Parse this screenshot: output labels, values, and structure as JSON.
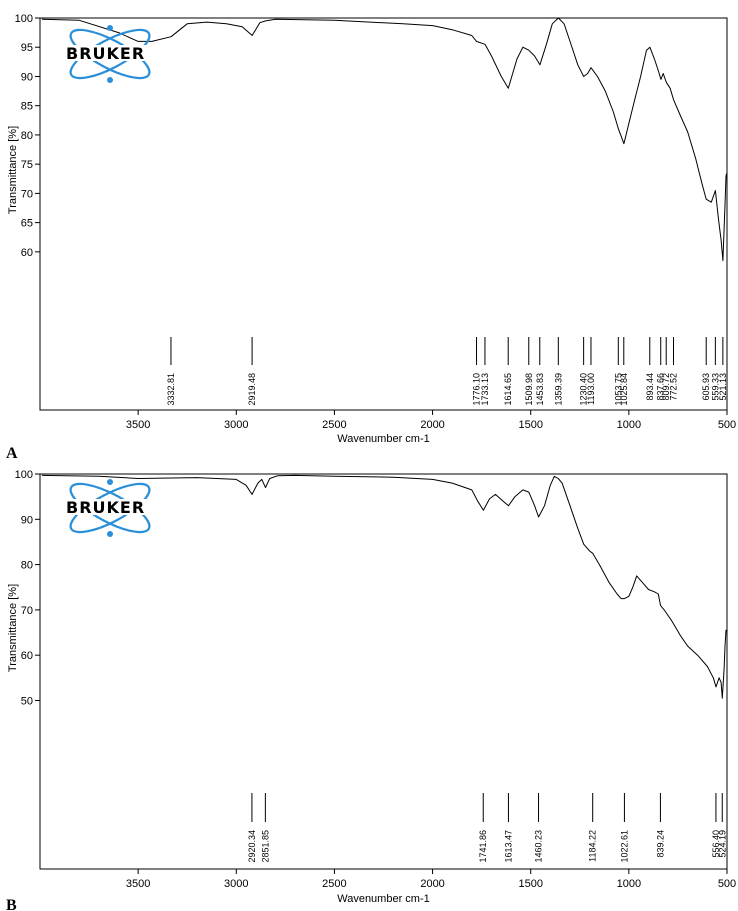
{
  "figure": {
    "panel_letters": [
      "A",
      "B"
    ]
  },
  "chart_data": [
    {
      "type": "line",
      "panel": "A",
      "xlabel": "Wavenumber cm-1",
      "ylabel": "Transmittance [%]",
      "xlim": [
        4000,
        500
      ],
      "ylim": [
        48,
        100
      ],
      "x_ticks": [
        3500,
        3000,
        2500,
        2000,
        1500,
        1000,
        500
      ],
      "y_ticks": [
        60,
        65,
        70,
        75,
        80,
        85,
        90,
        95,
        100
      ],
      "grid": false,
      "logo": "BRUKER",
      "series": [
        {
          "x": [
            3990,
            3800,
            3600,
            3500,
            3430,
            3332,
            3250,
            3150,
            3050,
            2970,
            2919,
            2880,
            2850,
            2800,
            2500,
            2150,
            2000,
            1900,
            1800,
            1776,
            1733,
            1700,
            1650,
            1614,
            1570,
            1540,
            1510,
            1480,
            1453,
            1420,
            1390,
            1359,
            1330,
            1300,
            1260,
            1230,
            1210,
            1193,
            1160,
            1120,
            1080,
            1053,
            1025,
            1000,
            970,
            940,
            910,
            893,
            870,
            850,
            837,
            825,
            809,
            790,
            772,
            740,
            700,
            660,
            630,
            606,
            580,
            559,
            545,
            530,
            521,
            510,
            505,
            500
          ],
          "y": [
            99.8,
            99.6,
            97.5,
            96.0,
            96.0,
            96.8,
            99.0,
            99.3,
            99.0,
            98.5,
            97.0,
            99.2,
            99.5,
            99.8,
            99.6,
            99.0,
            98.7,
            98.0,
            97.0,
            96.0,
            95.5,
            93.5,
            90.0,
            88.0,
            93.0,
            95.0,
            94.5,
            93.5,
            92.0,
            95.5,
            99.0,
            100.0,
            99.0,
            96.0,
            92.0,
            90.0,
            90.5,
            91.5,
            90.0,
            87.5,
            84.0,
            81.0,
            78.5,
            82.0,
            86.0,
            90.0,
            94.5,
            95.0,
            93.0,
            91.0,
            89.5,
            90.5,
            89.0,
            88.0,
            86.0,
            83.5,
            80.5,
            76.0,
            72.0,
            69.0,
            68.5,
            70.5,
            66.0,
            62.0,
            58.5,
            68.0,
            73.0,
            73.5
          ]
        }
      ],
      "peaks": [
        "3332.81",
        "2919.48",
        "1776.10",
        "1733.13",
        "1614.65",
        "1509.98",
        "1453.83",
        "1359.39",
        "1230.40",
        "1193.00",
        "1053.75",
        "1025.84",
        "893.44",
        "837.66",
        "809.72",
        "772.52",
        "605.93",
        "559.33",
        "521.13"
      ]
    },
    {
      "type": "line",
      "panel": "B",
      "xlabel": "Wavenumber cm-1",
      "ylabel": "Transmittance [%]",
      "xlim": [
        4000,
        500
      ],
      "ylim": [
        32,
        100
      ],
      "x_ticks": [
        3500,
        3000,
        2500,
        2000,
        1500,
        1000,
        500
      ],
      "y_ticks": [
        50,
        60,
        70,
        80,
        90,
        100
      ],
      "grid": false,
      "logo": "BRUKER",
      "series": [
        {
          "x": [
            3990,
            3700,
            3500,
            3200,
            3000,
            2950,
            2920,
            2890,
            2870,
            2851,
            2830,
            2790,
            2700,
            2500,
            2200,
            2000,
            1900,
            1800,
            1770,
            1741,
            1710,
            1680,
            1640,
            1613,
            1580,
            1540,
            1510,
            1480,
            1460,
            1430,
            1400,
            1380,
            1360,
            1340,
            1300,
            1260,
            1230,
            1200,
            1184,
            1150,
            1100,
            1060,
            1040,
            1022,
            1000,
            980,
            960,
            930,
            900,
            870,
            850,
            839,
            820,
            780,
            740,
            700,
            650,
            600,
            570,
            556,
            540,
            530,
            524,
            515,
            510,
            505,
            500
          ],
          "y": [
            99.7,
            99.5,
            99.0,
            99.2,
            98.8,
            97.5,
            95.5,
            98.0,
            98.8,
            97.0,
            99.0,
            99.6,
            99.7,
            99.5,
            99.3,
            98.8,
            98.0,
            96.5,
            94.0,
            92.0,
            94.5,
            95.5,
            94.0,
            93.0,
            95.0,
            96.5,
            96.0,
            93.0,
            90.5,
            93.0,
            97.5,
            99.5,
            99.0,
            98.0,
            93.0,
            88.0,
            84.5,
            83.0,
            82.5,
            80.0,
            76.0,
            73.5,
            72.5,
            72.5,
            73.0,
            75.0,
            77.5,
            76.0,
            74.5,
            74.0,
            73.5,
            71.0,
            70.0,
            67.5,
            64.5,
            62.0,
            60.0,
            57.5,
            55.0,
            53.0,
            55.0,
            54.0,
            50.5,
            57.0,
            62.0,
            65.5,
            65.5
          ]
        }
      ],
      "peaks": [
        "2920.34",
        "2851.85",
        "1741.86",
        "1613.47",
        "1460.23",
        "1184.22",
        "1022.61",
        "839.24",
        "556.40",
        "524.19"
      ]
    }
  ]
}
